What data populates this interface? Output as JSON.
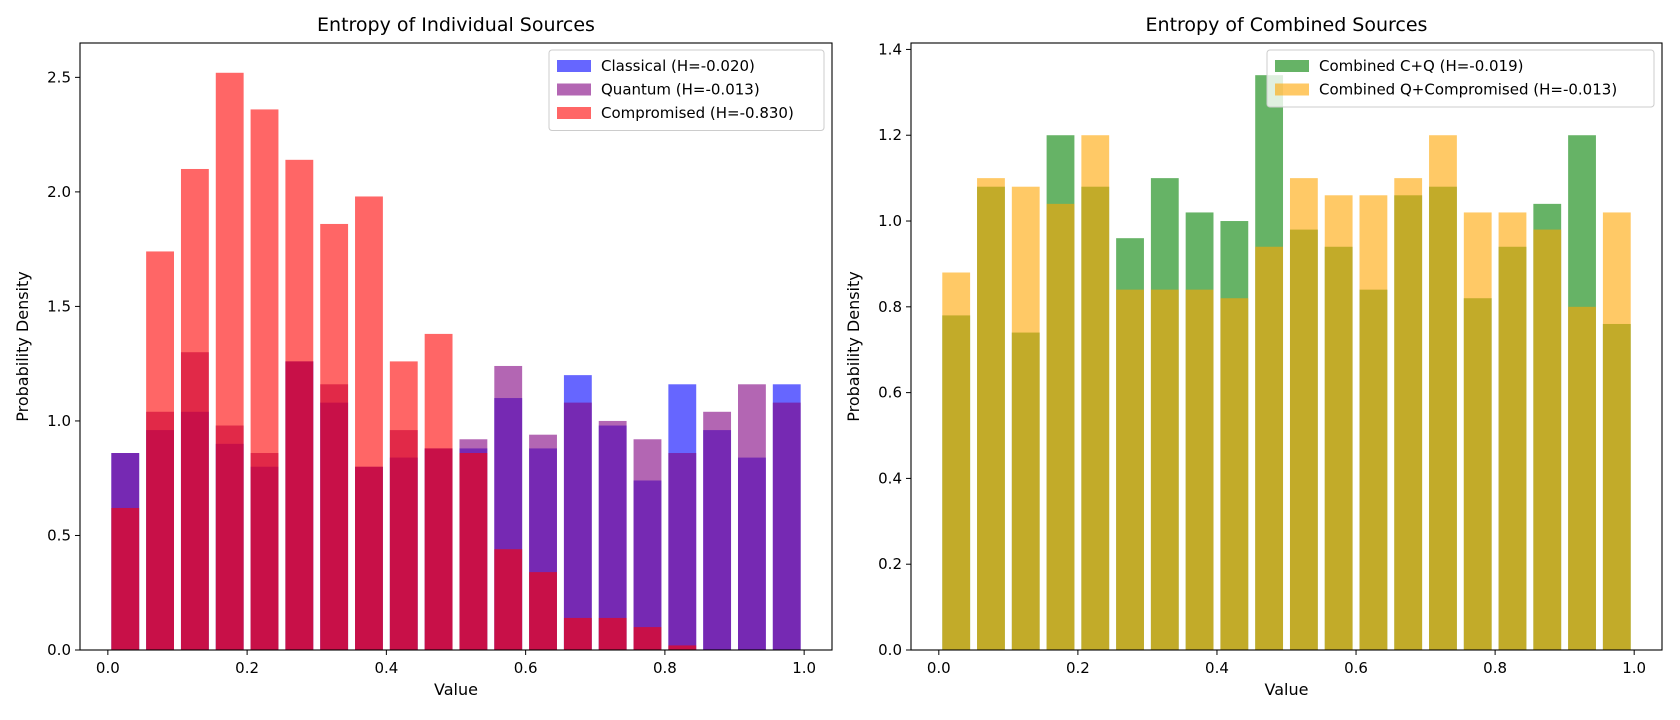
{
  "chart_data": [
    {
      "type": "bar",
      "title": "Entropy of Individual Sources",
      "xlabel": "Value",
      "ylabel": "Probability Density",
      "xlim": [
        -0.04,
        1.04
      ],
      "ylim": [
        0,
        2.65
      ],
      "xticks": [
        0.0,
        0.2,
        0.4,
        0.6,
        0.8,
        1.0
      ],
      "xtick_labels": [
        "0.0",
        "0.2",
        "0.4",
        "0.6",
        "0.8",
        "1.0"
      ],
      "yticks": [
        0.0,
        0.5,
        1.0,
        1.5,
        2.0,
        2.5
      ],
      "ytick_labels": [
        "0.0",
        "0.5",
        "1.0",
        "1.5",
        "2.0",
        "2.5"
      ],
      "legend_position": "top-right",
      "bar_width": 0.04,
      "x": [
        0.025,
        0.075,
        0.125,
        0.175,
        0.225,
        0.275,
        0.325,
        0.375,
        0.425,
        0.475,
        0.525,
        0.575,
        0.625,
        0.675,
        0.725,
        0.775,
        0.825,
        0.875,
        0.925,
        0.975
      ],
      "series": [
        {
          "name": "Classical (H=-0.020)",
          "color": "#0000ff",
          "alpha": 0.6,
          "values": [
            0.86,
            0.96,
            1.04,
            0.9,
            0.8,
            1.26,
            1.08,
            0.8,
            0.84,
            0.88,
            0.88,
            1.1,
            0.88,
            1.2,
            0.98,
            0.74,
            1.16,
            0.96,
            0.84,
            1.16
          ]
        },
        {
          "name": "Quantum (H=-0.013)",
          "color": "#800080",
          "alpha": 0.6,
          "values": [
            0.86,
            1.04,
            1.3,
            0.98,
            0.86,
            1.26,
            1.16,
            0.8,
            0.96,
            0.88,
            0.92,
            1.24,
            0.94,
            1.08,
            1.0,
            0.92,
            0.86,
            1.04,
            1.16,
            1.08
          ]
        },
        {
          "name": "Compromised (H=-0.830)",
          "color": "#ff0000",
          "alpha": 0.6,
          "values": [
            0.62,
            1.74,
            2.1,
            2.52,
            2.36,
            2.14,
            1.86,
            1.98,
            1.26,
            1.38,
            0.86,
            0.44,
            0.34,
            0.14,
            0.14,
            0.1,
            0.02,
            0.0,
            0.0,
            0.0
          ]
        }
      ]
    },
    {
      "type": "bar",
      "title": "Entropy of Combined Sources",
      "xlabel": "Value",
      "ylabel": "Probability Density",
      "xlim": [
        -0.04,
        1.04
      ],
      "ylim": [
        0,
        1.415
      ],
      "xticks": [
        0.0,
        0.2,
        0.4,
        0.6,
        0.8,
        1.0
      ],
      "xtick_labels": [
        "0.0",
        "0.2",
        "0.4",
        "0.6",
        "0.8",
        "1.0"
      ],
      "yticks": [
        0.0,
        0.2,
        0.4,
        0.6,
        0.8,
        1.0,
        1.2,
        1.4
      ],
      "ytick_labels": [
        "0.0",
        "0.2",
        "0.4",
        "0.6",
        "0.8",
        "1.0",
        "1.2",
        "1.4"
      ],
      "legend_position": "top-right",
      "bar_width": 0.04,
      "x": [
        0.025,
        0.075,
        0.125,
        0.175,
        0.225,
        0.275,
        0.325,
        0.375,
        0.425,
        0.475,
        0.525,
        0.575,
        0.625,
        0.675,
        0.725,
        0.775,
        0.825,
        0.875,
        0.925,
        0.975
      ],
      "series": [
        {
          "name": "Combined C+Q (H=-0.019)",
          "color": "#008000",
          "alpha": 0.6,
          "values": [
            0.78,
            1.08,
            0.74,
            1.2,
            1.08,
            0.96,
            1.1,
            1.02,
            1.0,
            1.34,
            0.98,
            0.94,
            0.84,
            1.06,
            1.08,
            0.82,
            0.94,
            1.04,
            1.2,
            0.76
          ]
        },
        {
          "name": "Combined Q+Compromised (H=-0.013)",
          "color": "#ffa500",
          "alpha": 0.6,
          "values": [
            0.88,
            1.1,
            1.08,
            1.04,
            1.2,
            0.84,
            0.84,
            0.84,
            0.82,
            0.94,
            1.1,
            1.06,
            1.06,
            1.1,
            1.2,
            1.02,
            1.02,
            0.98,
            0.8,
            1.02
          ]
        }
      ]
    }
  ]
}
